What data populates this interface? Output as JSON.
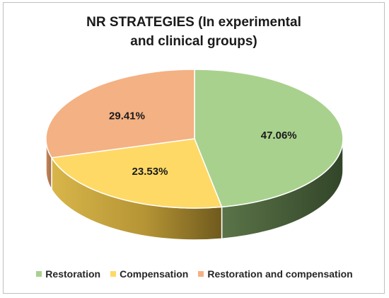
{
  "chart_data": {
    "type": "pie",
    "title_lines": [
      "NR STRATEGIES (In experimental",
      "and clinical groups)"
    ],
    "labels": [
      "Restoration",
      "Compensation",
      "Restoration and compensation"
    ],
    "values": [
      47.06,
      23.53,
      29.41
    ],
    "data_labels": [
      "47.06%",
      "23.53%",
      "29.41%"
    ],
    "colors": {
      "Restoration": "#a9d18e",
      "Compensation": "#ffd966",
      "Restoration and compensation": "#f4b183"
    },
    "style": "3d",
    "legend_position": "bottom"
  }
}
